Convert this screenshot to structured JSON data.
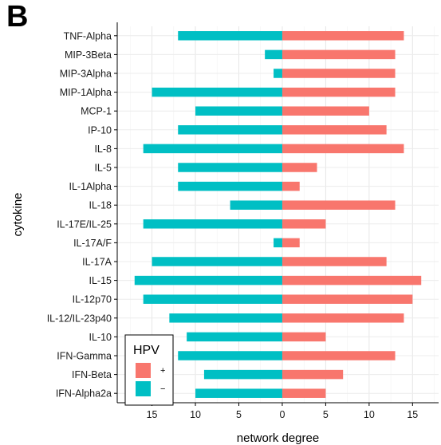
{
  "panel_label": "B",
  "chart_data": {
    "type": "bar",
    "orientation": "horizontal",
    "categories": [
      "TNF-Alpha",
      "MIP-3Beta",
      "MIP-3Alpha",
      "MIP-1Alpha",
      "MCP-1",
      "IP-10",
      "IL-8",
      "IL-5",
      "IL-1Alpha",
      "IL-18",
      "IL-17E/IL-25",
      "IL-17A/F",
      "IL-17A",
      "IL-15",
      "IL-12p70",
      "IL-12/IL-23p40",
      "IL-10",
      "IFN-Gamma",
      "IFN-Beta",
      "IFN-Alpha2a"
    ],
    "series": [
      {
        "name": "+",
        "color": "#F8766D",
        "values": [
          14,
          13,
          13,
          13,
          10,
          12,
          14,
          4,
          2,
          13,
          5,
          2,
          12,
          16,
          15,
          14,
          5,
          13,
          7,
          5
        ]
      },
      {
        "name": "−",
        "color": "#00BFC4",
        "values": [
          12,
          2,
          1,
          15,
          10,
          12,
          16,
          12,
          12,
          6,
          16,
          1,
          15,
          17,
          16,
          13,
          11,
          12,
          9,
          10
        ]
      }
    ],
    "xlabel": "network degree",
    "ylabel": "cytokine",
    "xlim": [
      -19,
      18
    ],
    "xticks": [
      -15,
      -10,
      -5,
      0,
      5,
      10,
      15
    ],
    "xtick_labels": [
      "15",
      "10",
      "5",
      "0",
      "5",
      "10",
      "15"
    ],
    "legend": {
      "title": "HPV",
      "position": "bottom-left"
    },
    "grid": true
  }
}
